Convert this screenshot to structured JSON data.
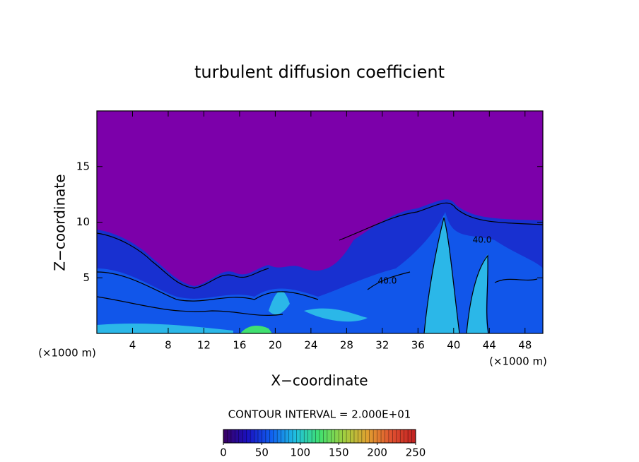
{
  "chart_data": {
    "type": "contour",
    "title": "turbulent diffusion coefficient",
    "x_label": "X−coordinate",
    "y_label": "Z−coordinate",
    "x_unit": "(×1000 m)",
    "y_unit": "(×1000 m)",
    "xlim": [
      0,
      50
    ],
    "ylim": [
      0,
      20
    ],
    "xticks": [
      4,
      8,
      12,
      16,
      20,
      24,
      28,
      32,
      36,
      40,
      44,
      48
    ],
    "yticks": [
      5,
      10,
      15
    ],
    "contour_labels": [
      "40.0",
      "40.0"
    ],
    "contour_interval": "CONTOUR INTERVAL = 2.000E+01",
    "colorbar": {
      "lim": [
        0,
        250
      ],
      "ticks": [
        0,
        50,
        100,
        150,
        200,
        250
      ],
      "colors": [
        "#3a0060",
        "#1a10c0",
        "#1060f0",
        "#20c0e0",
        "#40e070",
        "#a0d040",
        "#e0a030",
        "#e05030",
        "#c02020"
      ]
    }
  }
}
